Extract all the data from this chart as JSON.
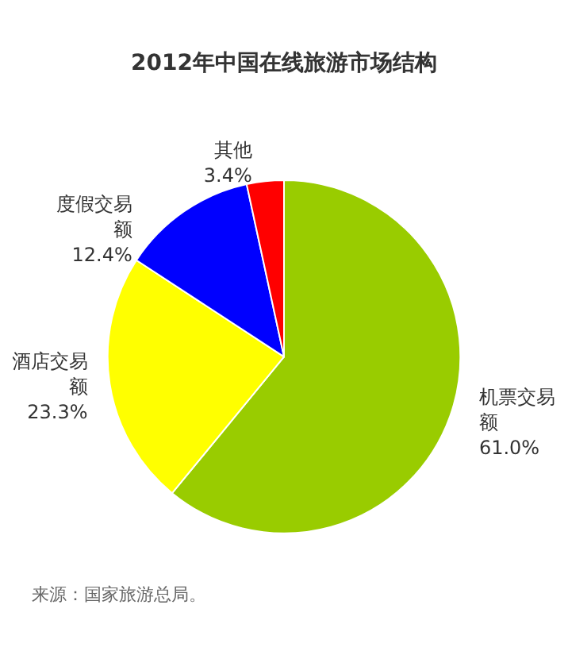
{
  "chart_data": {
    "type": "pie",
    "title": "2012年中国在线旅游市场结构",
    "categories": [
      "机票交易额",
      "酒店交易额",
      "度假交易额",
      "其他"
    ],
    "values": [
      61.0,
      23.3,
      12.4,
      3.4
    ],
    "value_labels": [
      "61.0%",
      "23.3%",
      "12.4%",
      "3.4%"
    ],
    "colors": [
      "#99cc00",
      "#ffff00",
      "#0000ff",
      "#ff0000"
    ],
    "annotations": [
      "来源：国家旅游总局。"
    ],
    "legend": false
  }
}
